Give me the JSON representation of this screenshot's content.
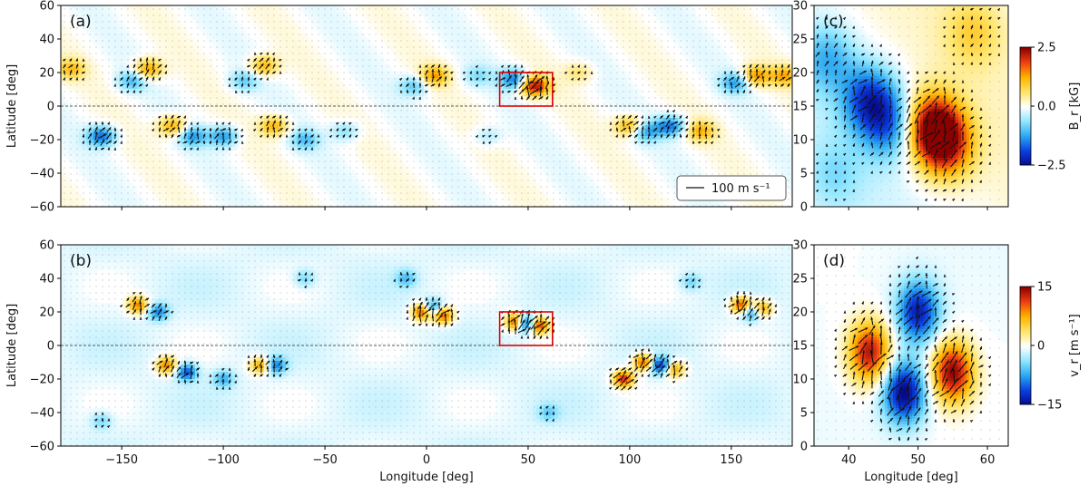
{
  "figure": {
    "colormap": [
      "#08088a",
      "#0a3fe0",
      "#2aa6f0",
      "#8fe6ff",
      "#ffffff",
      "#ffe56a",
      "#ffb300",
      "#f04010",
      "#8b0000"
    ],
    "box_color": "#dd0000",
    "arrow_color": "#111111"
  },
  "chart_data": [
    {
      "type": "heatmap",
      "panel_label": "(a)",
      "xlabel": "",
      "ylabel": "Latitude [deg]",
      "xlim": [
        -180,
        180
      ],
      "ylim": [
        -60,
        60
      ],
      "xticks": [
        -150,
        -100,
        -50,
        0,
        50,
        100,
        150
      ],
      "xtick_labels": [
        "",
        "",
        "",
        "",
        "",
        "",
        ""
      ],
      "yticks": [
        -60,
        -40,
        -20,
        0,
        20,
        40,
        60
      ],
      "ytick_labels": [
        "−60",
        "−40",
        "−20",
        "0",
        "20",
        "40",
        "60"
      ],
      "quantity": "Br",
      "arrow_legend": "100 m s⁻¹",
      "equator_line": true,
      "highlight_box": {
        "lon": [
          36,
          62
        ],
        "lat": [
          0,
          20
        ]
      },
      "features": [
        {
          "lon": -137,
          "lat": 22,
          "br": 1.4
        },
        {
          "lon": -145,
          "lat": 15,
          "br": -1.0
        },
        {
          "lon": -80,
          "lat": 24,
          "br": 1.2
        },
        {
          "lon": -90,
          "lat": 15,
          "br": -0.8
        },
        {
          "lon": 4,
          "lat": 18,
          "br": 1.3
        },
        {
          "lon": -6,
          "lat": 12,
          "br": -0.9
        },
        {
          "lon": 53,
          "lat": 12,
          "br": 2.3
        },
        {
          "lon": 43,
          "lat": 16,
          "br": -1.5
        },
        {
          "lon": 162,
          "lat": 18,
          "br": 1.4
        },
        {
          "lon": 152,
          "lat": 14,
          "br": -1.2
        },
        {
          "lon": -125,
          "lat": -12,
          "br": 1.3
        },
        {
          "lon": -115,
          "lat": -18,
          "br": -1.2
        },
        {
          "lon": -160,
          "lat": -18,
          "br": -1.6
        },
        {
          "lon": -100,
          "lat": -18,
          "br": -1.3
        },
        {
          "lon": -75,
          "lat": -12,
          "br": 1.2
        },
        {
          "lon": -60,
          "lat": -20,
          "br": -0.9
        },
        {
          "lon": 100,
          "lat": -12,
          "br": 1.3
        },
        {
          "lon": 108,
          "lat": -15,
          "br": -1.2
        },
        {
          "lon": 120,
          "lat": -12,
          "br": -1.5
        },
        {
          "lon": 135,
          "lat": -15,
          "br": 1.1
        },
        {
          "lon": -175,
          "lat": 22,
          "br": 1.0
        },
        {
          "lon": 176,
          "lat": 18,
          "br": 1.2
        },
        {
          "lon": -40,
          "lat": -15,
          "br": -0.7
        },
        {
          "lon": 25,
          "lat": 18,
          "br": -0.6
        },
        {
          "lon": 30,
          "lat": -18,
          "br": -0.5
        },
        {
          "lon": 75,
          "lat": 20,
          "br": 0.6
        }
      ]
    },
    {
      "type": "heatmap",
      "panel_label": "(b)",
      "xlabel": "Longitude [deg]",
      "ylabel": "Latitude [deg]",
      "xlim": [
        -180,
        180
      ],
      "ylim": [
        -60,
        60
      ],
      "xticks": [
        -150,
        -100,
        -50,
        0,
        50,
        100,
        150
      ],
      "xtick_labels": [
        "−150",
        "−100",
        "−50",
        "0",
        "50",
        "100",
        "150"
      ],
      "yticks": [
        -60,
        -40,
        -20,
        0,
        20,
        40,
        60
      ],
      "ytick_labels": [
        "−60",
        "−40",
        "−20",
        "0",
        "20",
        "40",
        "60"
      ],
      "quantity": "vr",
      "equator_line": true,
      "highlight_box": {
        "lon": [
          36,
          62
        ],
        "lat": [
          0,
          20
        ]
      },
      "features": [
        {
          "lon": -142,
          "lat": 24,
          "vr": 10
        },
        {
          "lon": -132,
          "lat": 20,
          "vr": -8
        },
        {
          "lon": -2,
          "lat": 20,
          "vr": 13
        },
        {
          "lon": 8,
          "lat": 18,
          "vr": 12
        },
        {
          "lon": 3,
          "lat": 22,
          "vr": -10
        },
        {
          "lon": 44,
          "lat": 14,
          "vr": 14
        },
        {
          "lon": 55,
          "lat": 12,
          "vr": 14
        },
        {
          "lon": 49,
          "lat": 13,
          "vr": -15
        },
        {
          "lon": 155,
          "lat": 24,
          "vr": 13
        },
        {
          "lon": 165,
          "lat": 22,
          "vr": 10
        },
        {
          "lon": 160,
          "lat": 20,
          "vr": -9
        },
        {
          "lon": -128,
          "lat": -12,
          "vr": 10
        },
        {
          "lon": -118,
          "lat": -16,
          "vr": -10
        },
        {
          "lon": -82,
          "lat": -12,
          "vr": 9
        },
        {
          "lon": -74,
          "lat": -12,
          "vr": -8
        },
        {
          "lon": 97,
          "lat": -20,
          "vr": 13
        },
        {
          "lon": 107,
          "lat": -10,
          "vr": 12
        },
        {
          "lon": 115,
          "lat": -12,
          "vr": -12
        },
        {
          "lon": 122,
          "lat": -14,
          "vr": 9
        },
        {
          "lon": -100,
          "lat": -20,
          "vr": -6
        },
        {
          "lon": -10,
          "lat": 40,
          "vr": -5
        },
        {
          "lon": 60,
          "lat": -40,
          "vr": -4
        },
        {
          "lon": -160,
          "lat": -45,
          "vr": -4
        },
        {
          "lon": 130,
          "lat": 38,
          "vr": -4
        },
        {
          "lon": -60,
          "lat": 40,
          "vr": -4
        }
      ]
    },
    {
      "type": "heatmap",
      "panel_label": "(c)",
      "xlabel": "",
      "ylabel": "",
      "xlim": [
        35,
        63
      ],
      "ylim": [
        0,
        30
      ],
      "xticks": [
        40,
        50,
        60
      ],
      "xtick_labels": [
        "",
        "",
        ""
      ],
      "yticks": [
        0,
        5,
        10,
        15,
        20,
        25,
        30
      ],
      "ytick_labels": [
        "0",
        "5",
        "10",
        "15",
        "20",
        "25",
        "30"
      ],
      "quantity": "Br",
      "colorbar": {
        "label": "B_r [kG]",
        "min": -2.5,
        "max": 2.5,
        "ticks": [
          2.5,
          0.0,
          -2.5
        ],
        "tick_labels": [
          "2.5",
          "0.0",
          "−2.5"
        ]
      },
      "features": [
        {
          "lon": 52,
          "lat": 12,
          "br": 2.4
        },
        {
          "lon": 54,
          "lat": 9,
          "br": 1.8
        },
        {
          "lon": 43,
          "lat": 16,
          "br": -1.8
        },
        {
          "lon": 46,
          "lat": 12,
          "br": -1.4
        },
        {
          "lon": 37,
          "lat": 22,
          "br": -1.0
        },
        {
          "lon": 58,
          "lat": 26,
          "br": 0.7
        },
        {
          "lon": 38,
          "lat": 5,
          "br": -0.5
        }
      ]
    },
    {
      "type": "heatmap",
      "panel_label": "(d)",
      "xlabel": "Longitude [deg]",
      "ylabel": "",
      "xlim": [
        35,
        63
      ],
      "ylim": [
        0,
        30
      ],
      "xticks": [
        40,
        50,
        60
      ],
      "xtick_labels": [
        "40",
        "50",
        "60"
      ],
      "yticks": [
        0,
        5,
        10,
        15,
        20,
        25,
        30
      ],
      "ytick_labels": [
        "0",
        "5",
        "10",
        "15",
        "20",
        "25",
        "30"
      ],
      "quantity": "vr",
      "colorbar": {
        "label": "v_r [m s⁻¹]",
        "min": -15,
        "max": 15,
        "ticks": [
          15,
          0,
          -15
        ],
        "tick_labels": [
          "15",
          "0",
          "−15"
        ]
      },
      "features": [
        {
          "lon": 43,
          "lat": 14,
          "vr": 14
        },
        {
          "lon": 55,
          "lat": 11,
          "vr": 15
        },
        {
          "lon": 48,
          "lat": 8,
          "vr": -15
        },
        {
          "lon": 50,
          "lat": 20,
          "vr": -13
        }
      ]
    }
  ]
}
